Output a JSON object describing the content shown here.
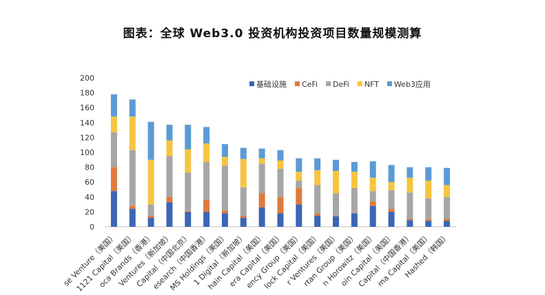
{
  "title": "图表：全球 Web3.0 投资机构投资项目数量规模测算",
  "chart_data": {
    "type": "bar",
    "stacked": true,
    "title": "图表：全球 Web3.0 投资机构投资项目数量规模测算",
    "ylim": [
      0,
      200
    ],
    "yticks": [
      0,
      20,
      40,
      60,
      80,
      100,
      120,
      140,
      160,
      180,
      200
    ],
    "legend_position": "top-right",
    "grid": false,
    "categories": [
      "se Venture（美国）",
      "1121 Capital（美国）",
      "oca Brands（香港）",
      "Ventures（新加坡）",
      "Capital（中国北京）",
      "esearch（中国香港）",
      "MS Holdings（美国）",
      "1 Digital（新加坡）",
      "hain Capital（美国）",
      "era Capital（美国）",
      "ency Group（美国）",
      "lock Capital（美国）",
      "r Ventures（美国）",
      "rtan Group（美国）",
      "n Horowitz（美国）",
      "oin Capital（美国）",
      "Capital（中国香港）",
      "ma Capital（美国）",
      "Hashed（韩国）"
    ],
    "series": [
      {
        "name": "基础设施",
        "color": "#3a66b4",
        "values": [
          48,
          24,
          12,
          33,
          20,
          20,
          18,
          12,
          26,
          18,
          30,
          15,
          14,
          18,
          28,
          20,
          9,
          8,
          8
        ]
      },
      {
        "name": "CeFi",
        "color": "#e07a3a",
        "values": [
          32,
          4,
          3,
          7,
          1,
          16,
          4,
          3,
          19,
          22,
          22,
          3,
          1,
          0,
          6,
          4,
          2,
          2,
          3
        ]
      },
      {
        "name": "DeFi",
        "color": "#a6a6a6",
        "values": [
          47,
          75,
          15,
          55,
          52,
          51,
          60,
          38,
          40,
          38,
          10,
          38,
          30,
          34,
          14,
          25,
          35,
          28,
          29
        ]
      },
      {
        "name": "NFT",
        "color": "#f7c440",
        "values": [
          21,
          45,
          60,
          21,
          31,
          25,
          12,
          38,
          7,
          11,
          12,
          20,
          30,
          22,
          18,
          11,
          20,
          24,
          16
        ]
      },
      {
        "name": "Web3应用",
        "color": "#5b9bd5",
        "values": [
          30,
          23,
          51,
          21,
          33,
          22,
          17,
          15,
          13,
          14,
          18,
          16,
          15,
          13,
          22,
          23,
          14,
          18,
          23
        ]
      }
    ]
  }
}
